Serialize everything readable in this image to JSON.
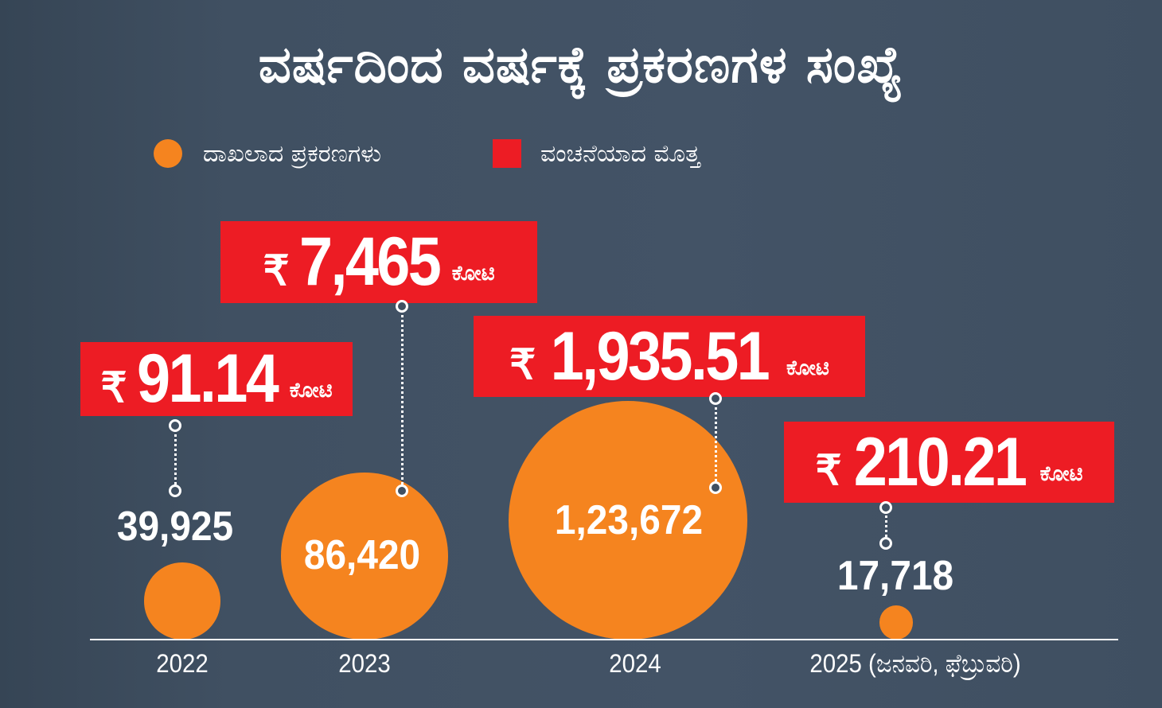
{
  "chart_data": {
    "type": "bubble",
    "title": "ವರ್ಷದಿಂದ ವರ್ಷಕ್ಕೆ ಪ್ರಕರಣಗಳ ಸಂಖ್ಯೆ",
    "legend": [
      {
        "name": "ದಾಖಲಾದ ಪ್ರಕರಣಗಳು",
        "shape": "circle",
        "color": "#f5841f"
      },
      {
        "name": "ವಂಚನೆಯಾದ ಮೊತ್ತ",
        "shape": "square",
        "color": "#ed1c24"
      }
    ],
    "legend_position": "top-left",
    "currency_symbol": "₹",
    "amount_unit": "ಕೋಟಿ",
    "categories": [
      "2022",
      "2023",
      "2024",
      "2025 (ಜನವರಿ, ಫೆಬ್ರುವರಿ)"
    ],
    "series": [
      {
        "name": "ದಾಖಲಾದ ಪ್ರಕರಣಗಳು",
        "values": [
          39925,
          86420,
          123672,
          17718
        ],
        "labels": [
          "39,925",
          "86,420",
          "1,23,672",
          "17,718"
        ]
      },
      {
        "name": "ವಂಚನೆಯಾದ ಮೊತ್ತ",
        "values": [
          91.14,
          7465,
          1935.51,
          210.21
        ],
        "labels": [
          "91.14",
          "7,465",
          "1,935.51",
          "210.21"
        ]
      }
    ],
    "grid": false
  },
  "colors": {
    "bubble": "#f5841f",
    "amount_box": "#ed1c24",
    "background": "#414f61"
  }
}
